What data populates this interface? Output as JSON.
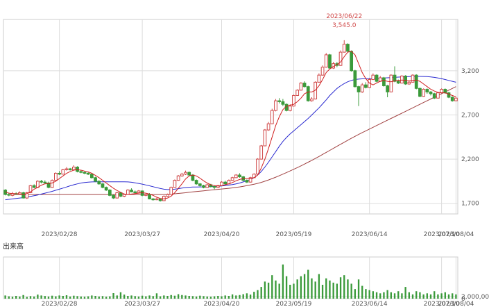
{
  "colors": {
    "up": "#d04848",
    "down": "#3a9a3a",
    "ma_short": "#d02020",
    "ma_mid": "#2a2ad0",
    "ma_long": "#a04040",
    "grid": "#dddddd",
    "frame": "#cccccc",
    "volume": "#3a9a3a"
  },
  "volume_title": "出来高",
  "chart_data": [
    {
      "type": "candlestick",
      "y_ticks": [
        "3,200",
        "2,700",
        "2,200",
        "1,700"
      ],
      "x_ticks": [
        "2023/02/28",
        "2023/03/27",
        "2023/04/20",
        "2023/05/19",
        "2023/06/14",
        "2023/07/10",
        "2023/08/04"
      ],
      "ylim": [
        1580,
        3780
      ],
      "grid": true,
      "annotation": {
        "date": "2023/06/22",
        "value": "3,545.0"
      },
      "candles": [
        [
          1850,
          1800,
          1860,
          1790
        ],
        [
          1800,
          1795,
          1820,
          1780
        ],
        [
          1790,
          1810,
          1830,
          1780
        ],
        [
          1810,
          1805,
          1825,
          1795
        ],
        [
          1805,
          1820,
          1835,
          1800
        ],
        [
          1820,
          1760,
          1830,
          1755
        ],
        [
          1760,
          1820,
          1830,
          1750
        ],
        [
          1820,
          1900,
          1910,
          1815
        ],
        [
          1900,
          1880,
          1915,
          1870
        ],
        [
          1880,
          1950,
          1960,
          1875
        ],
        [
          1950,
          1940,
          1965,
          1925
        ],
        [
          1940,
          1930,
          1960,
          1920
        ],
        [
          1930,
          1880,
          1945,
          1870
        ],
        [
          1880,
          1960,
          1970,
          1875
        ],
        [
          1960,
          2040,
          2050,
          1955
        ],
        [
          2040,
          2030,
          2065,
          2020
        ],
        [
          2030,
          2080,
          2090,
          2025
        ],
        [
          2080,
          2090,
          2110,
          2070
        ],
        [
          2090,
          2080,
          2100,
          2070
        ],
        [
          2080,
          2110,
          2130,
          2075
        ],
        [
          2110,
          2060,
          2120,
          2050
        ],
        [
          2060,
          2050,
          2075,
          2040
        ],
        [
          2050,
          2040,
          2060,
          2030
        ],
        [
          2040,
          2030,
          2055,
          2020
        ],
        [
          2030,
          1990,
          2040,
          1980
        ],
        [
          1990,
          1950,
          2000,
          1940
        ],
        [
          1950,
          1920,
          1960,
          1910
        ],
        [
          1920,
          1880,
          1930,
          1870
        ],
        [
          1880,
          1850,
          1890,
          1840
        ],
        [
          1850,
          1790,
          1860,
          1780
        ],
        [
          1790,
          1760,
          1800,
          1750
        ],
        [
          1760,
          1820,
          1830,
          1755
        ],
        [
          1820,
          1780,
          1830,
          1770
        ],
        [
          1780,
          1800,
          1810,
          1770
        ],
        [
          1800,
          1850,
          1860,
          1795
        ],
        [
          1850,
          1830,
          1870,
          1825
        ],
        [
          1830,
          1820,
          1845,
          1810
        ],
        [
          1820,
          1840,
          1850,
          1815
        ],
        [
          1840,
          1790,
          1845,
          1780
        ],
        [
          1790,
          1800,
          1810,
          1780
        ],
        [
          1800,
          1750,
          1815,
          1745
        ],
        [
          1750,
          1740,
          1760,
          1730
        ],
        [
          1740,
          1750,
          1765,
          1735
        ],
        [
          1750,
          1730,
          1755,
          1720
        ],
        [
          1730,
          1780,
          1790,
          1725
        ],
        [
          1780,
          1800,
          1810,
          1775
        ],
        [
          1800,
          1880,
          1890,
          1795
        ],
        [
          1880,
          1960,
          1970,
          1875
        ],
        [
          1960,
          2010,
          2020,
          1955
        ],
        [
          2010,
          2030,
          2045,
          2000
        ],
        [
          2030,
          2050,
          2070,
          2020
        ],
        [
          2050,
          2020,
          2060,
          2010
        ],
        [
          2020,
          1960,
          2030,
          1950
        ],
        [
          1960,
          1920,
          1970,
          1910
        ],
        [
          1920,
          1900,
          1930,
          1890
        ],
        [
          1900,
          1880,
          1910,
          1870
        ],
        [
          1880,
          1910,
          1920,
          1875
        ],
        [
          1910,
          1890,
          1920,
          1880
        ],
        [
          1890,
          1880,
          1900,
          1860
        ],
        [
          1880,
          1900,
          1910,
          1870
        ],
        [
          1900,
          1940,
          1950,
          1895
        ],
        [
          1940,
          1920,
          1955,
          1910
        ],
        [
          1920,
          1960,
          1970,
          1915
        ],
        [
          1960,
          1990,
          2000,
          1955
        ],
        [
          1990,
          2020,
          2030,
          1985
        ],
        [
          2020,
          2000,
          2040,
          1990
        ],
        [
          2000,
          1960,
          2010,
          1950
        ],
        [
          1960,
          1940,
          1970,
          1930
        ],
        [
          1940,
          1990,
          2000,
          1935
        ],
        [
          1990,
          2030,
          2040,
          1985
        ],
        [
          2030,
          2200,
          2210,
          2025
        ],
        [
          2200,
          2350,
          2360,
          2195
        ],
        [
          2350,
          2530,
          2540,
          2345
        ],
        [
          2530,
          2600,
          2620,
          2520
        ],
        [
          2600,
          2750,
          2770,
          2595
        ],
        [
          2750,
          2860,
          2880,
          2740
        ],
        [
          2860,
          2850,
          2890,
          2830
        ],
        [
          2850,
          2820,
          2880,
          2800
        ],
        [
          2820,
          2750,
          2830,
          2740
        ],
        [
          2750,
          2800,
          2820,
          2740
        ],
        [
          2800,
          2920,
          2930,
          2795
        ],
        [
          2920,
          2980,
          2990,
          2915
        ],
        [
          2980,
          3060,
          3070,
          2975
        ],
        [
          3060,
          3020,
          3080,
          3010
        ],
        [
          3020,
          2860,
          3030,
          2850
        ],
        [
          2860,
          2880,
          2900,
          2850
        ],
        [
          2880,
          3070,
          3080,
          2875
        ],
        [
          3070,
          3150,
          3170,
          3065
        ],
        [
          3150,
          3240,
          3260,
          3145
        ],
        [
          3240,
          3380,
          3400,
          3235
        ],
        [
          3380,
          3230,
          3390,
          3220
        ],
        [
          3230,
          3280,
          3300,
          3220
        ],
        [
          3280,
          3260,
          3300,
          3240
        ],
        [
          3260,
          3410,
          3430,
          3255
        ],
        [
          3410,
          3500,
          3545,
          3405
        ],
        [
          3500,
          3420,
          3510,
          3410
        ],
        [
          3420,
          3200,
          3430,
          3190
        ],
        [
          3200,
          3020,
          3210,
          3010
        ],
        [
          3020,
          2960,
          3030,
          2800
        ],
        [
          2960,
          3040,
          3060,
          2950
        ],
        [
          3040,
          3010,
          3070,
          3000
        ],
        [
          3010,
          3100,
          3120,
          3005
        ],
        [
          3100,
          3150,
          3170,
          3095
        ],
        [
          3150,
          3080,
          3160,
          3070
        ],
        [
          3080,
          3120,
          3140,
          3075
        ],
        [
          3120,
          3030,
          3130,
          3020
        ],
        [
          3030,
          2960,
          3040,
          2900
        ],
        [
          2960,
          3150,
          3160,
          2955
        ],
        [
          3150,
          3080,
          3250,
          3070
        ],
        [
          3080,
          3060,
          3100,
          3050
        ],
        [
          3060,
          3140,
          3150,
          3055
        ],
        [
          3140,
          3050,
          3150,
          3040
        ],
        [
          3050,
          3070,
          3090,
          3040
        ],
        [
          3070,
          3150,
          3160,
          3065
        ],
        [
          3150,
          3000,
          3160,
          2990
        ],
        [
          3000,
          2910,
          3010,
          2900
        ],
        [
          2910,
          2990,
          3000,
          2905
        ],
        [
          2990,
          2960,
          3000,
          2940
        ],
        [
          2960,
          2940,
          2970,
          2920
        ],
        [
          2940,
          2890,
          2950,
          2880
        ],
        [
          2890,
          2950,
          2960,
          2885
        ],
        [
          2950,
          2990,
          3000,
          2945
        ],
        [
          2990,
          2950,
          3000,
          2940
        ],
        [
          2950,
          2900,
          2960,
          2890
        ],
        [
          2900,
          2860,
          2910,
          2850
        ],
        [
          2860,
          2890,
          2900,
          2855
        ]
      ],
      "ma_short": [
        1830,
        1815,
        1810,
        1808,
        1806,
        1800,
        1810,
        1830,
        1860,
        1880,
        1905,
        1920,
        1925,
        1930,
        1950,
        1980,
        2010,
        2040,
        2060,
        2075,
        2080,
        2075,
        2065,
        2055,
        2040,
        2015,
        1990,
        1960,
        1930,
        1900,
        1870,
        1845,
        1825,
        1805,
        1800,
        1805,
        1810,
        1815,
        1820,
        1815,
        1805,
        1790,
        1770,
        1755,
        1750,
        1760,
        1780,
        1820,
        1870,
        1920,
        1975,
        2010,
        2020,
        2010,
        1985,
        1955,
        1930,
        1910,
        1900,
        1895,
        1900,
        1910,
        1920,
        1935,
        1955,
        1970,
        1980,
        1980,
        1980,
        1990,
        2020,
        2100,
        2200,
        2320,
        2450,
        2580,
        2680,
        2760,
        2800,
        2810,
        2820,
        2850,
        2890,
        2940,
        2960,
        2960,
        2980,
        3030,
        3100,
        3180,
        3220,
        3250,
        3270,
        3300,
        3360,
        3410,
        3420,
        3380,
        3280,
        3180,
        3110,
        3060,
        3040,
        3060,
        3080,
        3090,
        3080,
        3075,
        3085,
        3090,
        3095,
        3090,
        3085,
        3090,
        3095,
        3080,
        3050,
        3020,
        2990,
        2970,
        2955,
        2950,
        2950,
        2935,
        2920,
        2905
      ],
      "ma_mid": [
        1740,
        1745,
        1750,
        1755,
        1760,
        1765,
        1770,
        1778,
        1786,
        1794,
        1805,
        1815,
        1825,
        1835,
        1848,
        1860,
        1872,
        1885,
        1898,
        1910,
        1920,
        1930,
        1936,
        1940,
        1942,
        1944,
        1944,
        1944,
        1944,
        1944,
        1944,
        1944,
        1944,
        1943,
        1942,
        1938,
        1932,
        1925,
        1917,
        1908,
        1898,
        1888,
        1878,
        1868,
        1860,
        1856,
        1856,
        1860,
        1866,
        1872,
        1878,
        1882,
        1884,
        1885,
        1886,
        1886,
        1886,
        1888,
        1890,
        1892,
        1896,
        1900,
        1906,
        1912,
        1920,
        1930,
        1942,
        1955,
        1970,
        1990,
        2020,
        2060,
        2110,
        2165,
        2225,
        2285,
        2345,
        2400,
        2445,
        2485,
        2520,
        2555,
        2590,
        2625,
        2660,
        2700,
        2740,
        2780,
        2825,
        2870,
        2920,
        2960,
        3000,
        3030,
        3055,
        3075,
        3090,
        3100,
        3105,
        3108,
        3110,
        3110,
        3110,
        3112,
        3115,
        3118,
        3120,
        3122,
        3125,
        3128,
        3130,
        3132,
        3134,
        3135,
        3136,
        3136,
        3135,
        3133,
        3130,
        3125,
        3118,
        3110,
        3100,
        3090,
        3080,
        3070
      ],
      "ma_long": [
        1800,
        1800,
        1800,
        1800,
        1800,
        1800,
        1800,
        1800,
        1800,
        1800,
        1800,
        1800,
        1800,
        1800,
        1800,
        1800,
        1800,
        1800,
        1800,
        1800,
        1800,
        1800,
        1800,
        1800,
        1800,
        1800,
        1800,
        1800,
        1800,
        1800,
        1800,
        1800,
        1800,
        1800,
        1800,
        1800,
        1800,
        1800,
        1800,
        1800,
        1800,
        1800,
        1800,
        1800,
        1800,
        1802,
        1805,
        1808,
        1812,
        1816,
        1820,
        1825,
        1830,
        1834,
        1838,
        1842,
        1846,
        1850,
        1854,
        1858,
        1862,
        1866,
        1870,
        1875,
        1880,
        1886,
        1893,
        1900,
        1908,
        1916,
        1926,
        1937,
        1950,
        1964,
        1980,
        1996,
        2013,
        2030,
        2048,
        2066,
        2085,
        2104,
        2124,
        2144,
        2165,
        2186,
        2208,
        2230,
        2253,
        2276,
        2299,
        2322,
        2345,
        2368,
        2391,
        2414,
        2436,
        2458,
        2479,
        2500,
        2520,
        2540,
        2560,
        2580,
        2600,
        2620,
        2640,
        2660,
        2680,
        2700,
        2720,
        2740,
        2760,
        2780,
        2800,
        2820,
        2840,
        2860,
        2880,
        2900,
        2920,
        2940,
        2960,
        2980,
        3000,
        3020
      ]
    },
    {
      "type": "bar",
      "name": "volume",
      "y_ticks": [
        "2,000,00",
        "0"
      ],
      "ylim": [
        0,
        3900000
      ],
      "x_ticks": [
        "2023/02/28",
        "2023/03/27",
        "2023/04/20",
        "2023/05/19",
        "2023/06/14",
        "2023/07/10",
        "2023/08/04"
      ],
      "values": [
        300000,
        220000,
        180000,
        260000,
        200000,
        340000,
        160000,
        240000,
        200000,
        380000,
        300000,
        250000,
        200000,
        280000,
        220000,
        300000,
        260000,
        320000,
        200000,
        280000,
        240000,
        200000,
        180000,
        220000,
        300000,
        260000,
        200000,
        240000,
        180000,
        220000,
        520000,
        300000,
        600000,
        380000,
        260000,
        300000,
        240000,
        200000,
        280000,
        220000,
        300000,
        240000,
        500000,
        220000,
        300000,
        260000,
        340000,
        280000,
        420000,
        340000,
        300000,
        260000,
        240000,
        200000,
        280000,
        240000,
        200000,
        180000,
        220000,
        260000,
        220000,
        300000,
        260000,
        400000,
        300000,
        340000,
        420000,
        500000,
        380000,
        640000,
        800000,
        1100000,
        1600000,
        1500000,
        2200000,
        1700000,
        1400000,
        3200000,
        2100000,
        1300000,
        1400000,
        1800000,
        2100000,
        2300000,
        2700000,
        1900000,
        1600000,
        2300000,
        1300000,
        1900000,
        1700000,
        1500000,
        1400000,
        2000000,
        2200000,
        1800000,
        1400000,
        900000,
        1800000,
        1200000,
        900000,
        800000,
        700000,
        600000,
        500000,
        600000,
        800000,
        600000,
        500000,
        700000,
        500000,
        1100000,
        600000,
        400000,
        700000,
        600000,
        400000,
        500000,
        400000,
        700000,
        400000,
        500000,
        600000,
        400000,
        500000,
        400000
      ]
    }
  ]
}
